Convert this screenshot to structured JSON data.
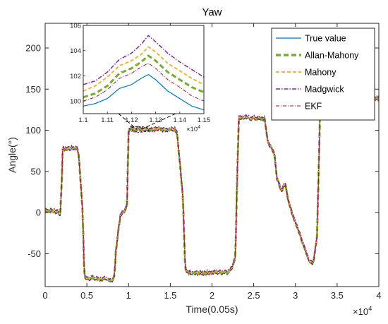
{
  "chart_data": [
    {
      "type": "line",
      "title": "Yaw",
      "xlabel": "Time(0.05s)",
      "ylabel": "Angle(°)",
      "xlim": [
        0,
        40000
      ],
      "ylim": [
        -90,
        230
      ],
      "x_ticks": [
        "0",
        "0.5",
        "1",
        "1.5",
        "2",
        "2.5",
        "3",
        "3.5",
        "4"
      ],
      "x_tick_values": [
        0,
        5000,
        10000,
        15000,
        20000,
        25000,
        30000,
        35000,
        40000
      ],
      "x_multiplier": "×10",
      "x_multiplier_exp": "4",
      "y_ticks": [
        "-50",
        "0",
        "50",
        "100",
        "150",
        "200"
      ],
      "y_tick_values": [
        -50,
        0,
        50,
        100,
        150,
        200
      ],
      "legend": "top-right",
      "series": [
        {
          "name": "True value",
          "color": "#0072BD",
          "style": "solid"
        },
        {
          "name": "Allan-Mahony",
          "color": "#77AC30",
          "style": "dashed-thick"
        },
        {
          "name": "Mahony",
          "color": "#EDB120",
          "style": "dashed"
        },
        {
          "name": "Madgwick",
          "color": "#7E2F8E",
          "style": "dashdot"
        },
        {
          "name": "EKF",
          "color": "#A2142F",
          "style": "dashdot-thin"
        }
      ],
      "x": [
        0,
        1600,
        1800,
        2000,
        2100,
        3800,
        4000,
        4500,
        4700,
        8100,
        8300,
        8500,
        9000,
        9800,
        10000,
        10200,
        15500,
        15800,
        16500,
        16800,
        17500,
        21800,
        22300,
        22800,
        23200,
        26300,
        26700,
        27500,
        27800,
        28300,
        28800,
        29200,
        31800,
        32200,
        32600,
        33000,
        33500,
        40000
      ],
      "true_value": [
        2,
        0,
        -5,
        40,
        76,
        78,
        72,
        0,
        -80,
        -83,
        -78,
        -45,
        -5,
        5,
        98,
        101,
        100,
        96,
        20,
        -72,
        -75,
        -73,
        -70,
        -55,
        115,
        113,
        85,
        70,
        40,
        25,
        35,
        10,
        -63,
        -60,
        -30,
        140,
        130,
        138
      ]
    },
    {
      "type": "line",
      "title": "",
      "xlim": [
        11000,
        11500
      ],
      "ylim": [
        99,
        106
      ],
      "x_ticks": [
        "1.1",
        "1.11",
        "1.12",
        "1.13",
        "1.14",
        "1.15"
      ],
      "x_tick_values": [
        11000,
        11100,
        11200,
        11300,
        11400,
        11500
      ],
      "x_multiplier": "×10",
      "x_multiplier_exp": "4",
      "y_ticks": [
        "100",
        "102",
        "104",
        "106"
      ],
      "y_tick_values": [
        100,
        102,
        104,
        106
      ],
      "x": [
        11000,
        11050,
        11100,
        11150,
        11200,
        11240,
        11270,
        11300,
        11350,
        11400,
        11450,
        11500
      ],
      "series": [
        {
          "name": "True value",
          "values": [
            99.6,
            99.8,
            100.2,
            101.0,
            101.3,
            101.8,
            102.1,
            101.7,
            100.8,
            100.2,
            99.6,
            99.3
          ]
        },
        {
          "name": "Allan-Mahony",
          "values": [
            100.3,
            100.6,
            101.2,
            102.2,
            102.6,
            103.1,
            103.6,
            103.2,
            102.3,
            101.7,
            101.1,
            100.7
          ]
        },
        {
          "name": "Mahony",
          "values": [
            100.8,
            101.2,
            101.9,
            102.8,
            103.2,
            103.7,
            104.3,
            103.9,
            103.0,
            102.4,
            101.8,
            101.3
          ]
        },
        {
          "name": "Madgwick",
          "values": [
            101.3,
            101.6,
            102.3,
            103.3,
            103.8,
            104.5,
            105.2,
            104.7,
            103.8,
            103.1,
            102.5,
            101.9
          ]
        },
        {
          "name": "EKF",
          "values": [
            100.0,
            100.3,
            100.9,
            101.8,
            102.2,
            102.7,
            103.0,
            102.6,
            101.7,
            101.1,
            100.4,
            100.0
          ]
        }
      ]
    }
  ]
}
